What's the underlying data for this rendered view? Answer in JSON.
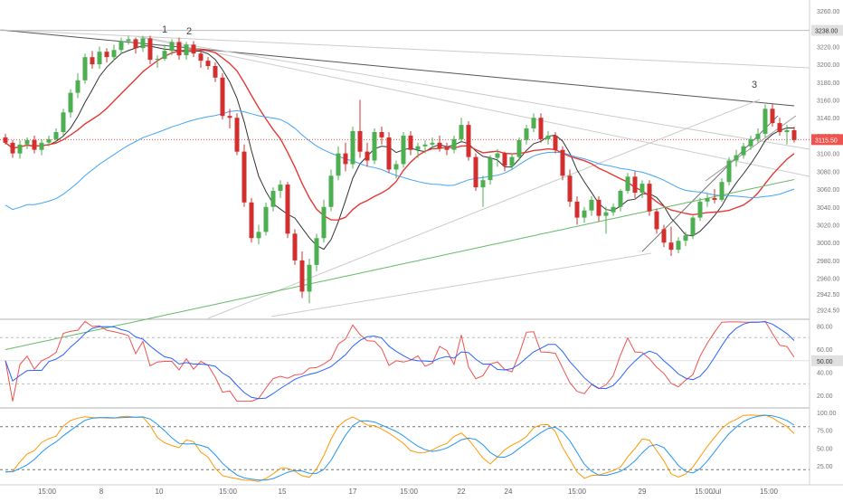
{
  "chart_data": {
    "type": "candlestick",
    "colors": {
      "up": "#4caf50",
      "down": "#d32f2f",
      "ma_fast": "#333333",
      "ma_mid": "#e53935",
      "ma_slow": "#42a5f5",
      "ma_long": "#66bb6a",
      "rsi": "#2962ff",
      "rsi_signal": "#ef5350",
      "stoch_k": "#2196f3",
      "stoch_d": "#ff9800",
      "current_price": "#ef5350",
      "highlight_label": "#e0e0e0",
      "trendline": "#555555",
      "light_lines": "#cccccc"
    },
    "main": {
      "y_axis_ticks": [
        "3260.00",
        "3240.00",
        "3220.00",
        "3200.00",
        "3180.00",
        "3160.00",
        "3140.00",
        "3120.00",
        "3100.00",
        "3080.00",
        "3060.00",
        "3040.00",
        "3020.00",
        "3000.00",
        "2980.00",
        "2960.00",
        "2942.50",
        "2924.50"
      ],
      "highlight_price": "3238.00",
      "current_price": "3115.50",
      "annotations": [
        "1",
        "2",
        "3"
      ],
      "candles": [
        [
          3118,
          3122,
          3110,
          3112
        ],
        [
          3112,
          3115,
          3095,
          3100
        ],
        [
          3100,
          3115,
          3094,
          3110
        ],
        [
          3110,
          3118,
          3105,
          3115
        ],
        [
          3115,
          3120,
          3100,
          3104
        ],
        [
          3104,
          3116,
          3098,
          3112
        ],
        [
          3112,
          3120,
          3108,
          3116
        ],
        [
          3116,
          3128,
          3112,
          3124
        ],
        [
          3124,
          3150,
          3120,
          3146
        ],
        [
          3146,
          3172,
          3140,
          3168
        ],
        [
          3168,
          3190,
          3162,
          3182
        ],
        [
          3182,
          3212,
          3178,
          3208
        ],
        [
          3208,
          3215,
          3195,
          3200
        ],
        [
          3200,
          3220,
          3195,
          3214
        ],
        [
          3214,
          3218,
          3202,
          3208
        ],
        [
          3208,
          3222,
          3204,
          3216
        ],
        [
          3216,
          3230,
          3212,
          3226
        ],
        [
          3226,
          3232,
          3222,
          3228
        ],
        [
          3228,
          3230,
          3212,
          3218
        ],
        [
          3218,
          3232,
          3214,
          3229
        ],
        [
          3229,
          3232,
          3200,
          3205
        ],
        [
          3205,
          3210,
          3196,
          3206
        ],
        [
          3206,
          3222,
          3204,
          3215
        ],
        [
          3215,
          3228,
          3210,
          3225
        ],
        [
          3225,
          3230,
          3205,
          3210
        ],
        [
          3210,
          3225,
          3205,
          3222
        ],
        [
          3222,
          3226,
          3208,
          3212
        ],
        [
          3212,
          3216,
          3196,
          3204
        ],
        [
          3204,
          3208,
          3194,
          3198
        ],
        [
          3198,
          3202,
          3180,
          3185
        ],
        [
          3185,
          3190,
          3138,
          3142
        ],
        [
          3142,
          3150,
          3128,
          3140
        ],
        [
          3140,
          3145,
          3098,
          3102
        ],
        [
          3102,
          3110,
          3040,
          3045
        ],
        [
          3045,
          3050,
          3000,
          3005
        ],
        [
          3005,
          3020,
          2998,
          3012
        ],
        [
          3012,
          3045,
          3008,
          3040
        ],
        [
          3040,
          3062,
          3035,
          3058
        ],
        [
          3058,
          3070,
          3050,
          3065
        ],
        [
          3065,
          3068,
          3005,
          3010
        ],
        [
          3010,
          3015,
          2975,
          2980
        ],
        [
          2980,
          2990,
          2938,
          2945
        ],
        [
          2945,
          2982,
          2932,
          2975
        ],
        [
          2975,
          3010,
          2968,
          3005
        ],
        [
          3005,
          3048,
          3000,
          3040
        ],
        [
          3040,
          3082,
          3035,
          3075
        ],
        [
          3075,
          3108,
          3070,
          3100
        ],
        [
          3100,
          3112,
          3080,
          3088
        ],
        [
          3088,
          3130,
          3083,
          3125
        ],
        [
          3125,
          3160,
          3095,
          3102
        ],
        [
          3102,
          3112,
          3085,
          3092
        ],
        [
          3092,
          3128,
          3088,
          3124
        ],
        [
          3124,
          3130,
          3110,
          3118
        ],
        [
          3118,
          3124,
          3078,
          3082
        ],
        [
          3082,
          3092,
          3072,
          3088
        ],
        [
          3088,
          3124,
          3084,
          3120
        ],
        [
          3120,
          3125,
          3098,
          3104
        ],
        [
          3104,
          3112,
          3095,
          3108
        ],
        [
          3108,
          3115,
          3100,
          3110
        ],
        [
          3110,
          3118,
          3105,
          3112
        ],
        [
          3112,
          3120,
          3102,
          3106
        ],
        [
          3106,
          3112,
          3098,
          3104
        ],
        [
          3104,
          3120,
          3100,
          3116
        ],
        [
          3116,
          3140,
          3112,
          3132
        ],
        [
          3132,
          3136,
          3092,
          3096
        ],
        [
          3096,
          3100,
          3058,
          3062
        ],
        [
          3062,
          3075,
          3040,
          3070
        ],
        [
          3070,
          3098,
          3065,
          3095
        ],
        [
          3095,
          3105,
          3085,
          3100
        ],
        [
          3100,
          3102,
          3080,
          3086
        ],
        [
          3086,
          3100,
          3082,
          3096
        ],
        [
          3096,
          3118,
          3092,
          3115
        ],
        [
          3115,
          3132,
          3110,
          3128
        ],
        [
          3128,
          3145,
          3124,
          3140
        ],
        [
          3140,
          3145,
          3112,
          3116
        ],
        [
          3116,
          3125,
          3110,
          3120
        ],
        [
          3120,
          3124,
          3100,
          3104
        ],
        [
          3104,
          3108,
          3070,
          3075
        ],
        [
          3075,
          3082,
          3040,
          3046
        ],
        [
          3046,
          3052,
          3020,
          3028
        ],
        [
          3028,
          3040,
          3022,
          3036
        ],
        [
          3036,
          3052,
          3030,
          3048
        ],
        [
          3048,
          3052,
          3024,
          3030
        ],
        [
          3030,
          3040,
          3010,
          3034
        ],
        [
          3034,
          3044,
          3030,
          3040
        ],
        [
          3040,
          3060,
          3035,
          3058
        ],
        [
          3058,
          3078,
          3055,
          3074
        ],
        [
          3074,
          3080,
          3050,
          3056
        ],
        [
          3056,
          3070,
          3050,
          3066
        ],
        [
          3066,
          3070,
          3030,
          3035
        ],
        [
          3035,
          3038,
          3010,
          3015
        ],
        [
          3015,
          3020,
          2995,
          3000
        ],
        [
          3000,
          3018,
          2985,
          2992
        ],
        [
          2992,
          3006,
          2988,
          3002
        ],
        [
          3002,
          3012,
          2996,
          3008
        ],
        [
          3008,
          3030,
          3004,
          3028
        ],
        [
          3028,
          3050,
          3024,
          3046
        ],
        [
          3046,
          3055,
          3040,
          3050
        ],
        [
          3050,
          3060,
          3044,
          3048
        ],
        [
          3048,
          3072,
          3046,
          3068
        ],
        [
          3068,
          3096,
          3064,
          3092
        ],
        [
          3092,
          3104,
          3085,
          3098
        ],
        [
          3098,
          3112,
          3094,
          3108
        ],
        [
          3108,
          3120,
          3104,
          3116
        ],
        [
          3116,
          3128,
          3112,
          3122
        ],
        [
          3122,
          3155,
          3118,
          3150
        ],
        [
          3150,
          3156,
          3130,
          3134
        ],
        [
          3134,
          3140,
          3120,
          3124
        ],
        [
          3124,
          3132,
          3110,
          3126
        ],
        [
          3126,
          3130,
          3112,
          3115
        ]
      ]
    },
    "rsi": {
      "y_axis_ticks": [
        "80.00",
        "60.00",
        "50.00",
        "40.00",
        "20.00"
      ],
      "current_value": "50.00"
    },
    "stoch": {
      "y_axis_ticks": [
        "100.00",
        "75.00",
        "50.00",
        "25.00"
      ]
    },
    "x_axis_labels": [
      "15:00",
      "8",
      "10",
      "15:00",
      "15",
      "17",
      "15:00",
      "22",
      "24",
      "15:00",
      "29",
      "15:00",
      "Jul",
      "15:00"
    ]
  }
}
